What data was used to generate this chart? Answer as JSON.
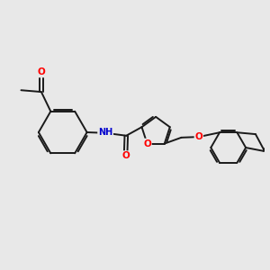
{
  "background_color": "#e8e8e8",
  "bond_color": "#1a1a1a",
  "bond_width": 1.4,
  "atom_colors": {
    "O": "#ff0000",
    "N": "#0000cd",
    "H": "#7fbfbf",
    "C": "#1a1a1a"
  },
  "figsize": [
    3.0,
    3.0
  ],
  "dpi": 100,
  "xlim": [
    -3.8,
    4.2
  ],
  "ylim": [
    -2.2,
    2.2
  ]
}
